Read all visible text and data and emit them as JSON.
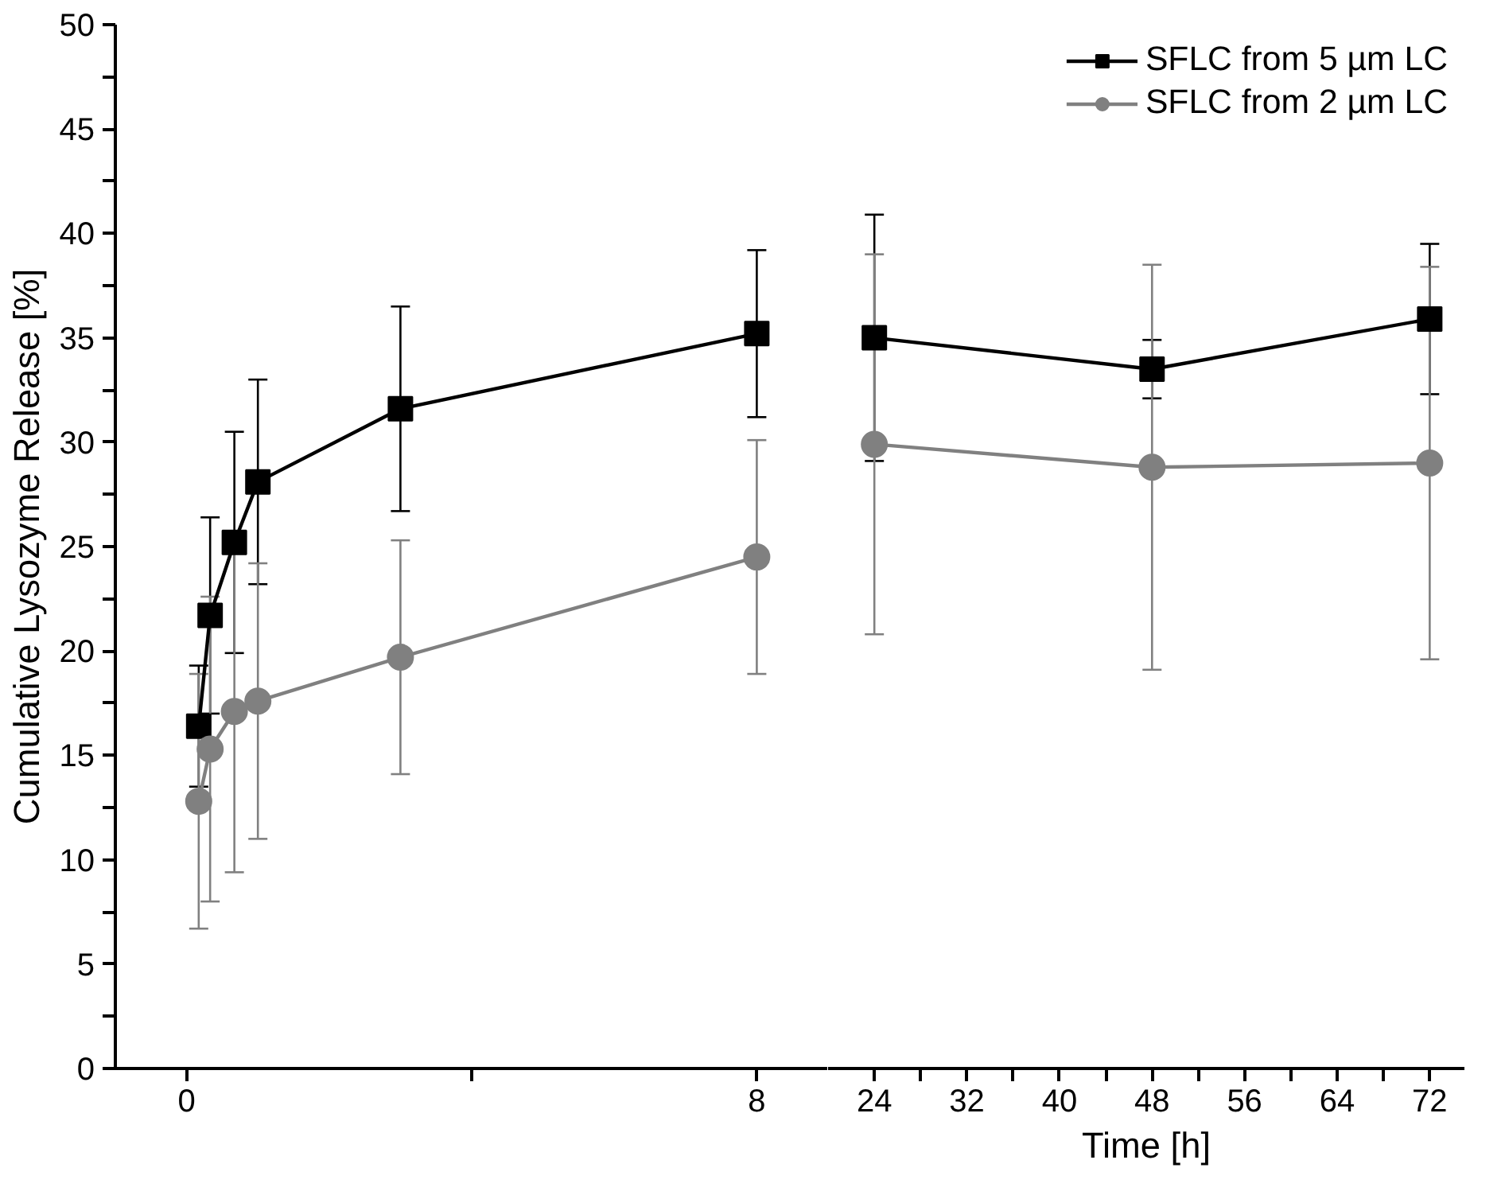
{
  "chart_data": [
    {
      "type": "line",
      "ylabel": "Cumulative Lysozyme Release [%]",
      "xlim": [
        -1,
        9
      ],
      "xticks": [
        0,
        {
          "value": 4,
          "label": null
        },
        8
      ],
      "ylim": [
        0,
        50
      ],
      "yticks": [
        0,
        {
          "value": 2.5,
          "label": null
        },
        5,
        {
          "value": 7.5,
          "label": null
        },
        10,
        {
          "value": 12.5,
          "label": null
        },
        15,
        {
          "value": 17.5,
          "label": null
        },
        20,
        {
          "value": 22.5,
          "label": null
        },
        25,
        {
          "value": 27.5,
          "label": null
        },
        30,
        {
          "value": 32.5,
          "label": null
        },
        35,
        {
          "value": 37.5,
          "label": null
        },
        40,
        {
          "value": 42.5,
          "label": null
        },
        45,
        {
          "value": 47.5,
          "label": null
        },
        50
      ],
      "grid": false,
      "legend": false,
      "line_style": "solid",
      "series": [
        {
          "color": "#000000",
          "marker": "square",
          "x": [
            0.17,
            0.33,
            0.67,
            1,
            3,
            8
          ],
          "values": [
            16.4,
            21.7,
            25.2,
            28.1,
            31.6,
            35.2
          ],
          "errors": [
            2.9,
            4.7,
            5.3,
            4.9,
            4.9,
            4.0
          ]
        },
        {
          "color": "#808080",
          "marker": "circle",
          "x": [
            0.17,
            0.33,
            0.67,
            1,
            3,
            8
          ],
          "values": [
            12.8,
            15.3,
            17.1,
            17.6,
            19.7,
            24.5
          ],
          "errors": [
            6.1,
            7.3,
            7.7,
            6.6,
            5.6,
            5.6
          ]
        }
      ]
    },
    {
      "type": "line",
      "xlabel": "Time [h]",
      "xlim": [
        20,
        75
      ],
      "xticks": [
        24,
        {
          "value": 28,
          "label": null
        },
        32,
        {
          "value": 36,
          "label": null
        },
        40,
        {
          "value": 44,
          "label": null
        },
        48,
        {
          "value": 52,
          "label": null
        },
        56,
        {
          "value": 60,
          "label": null
        },
        64,
        {
          "value": 68,
          "label": null
        },
        72
      ],
      "ylim": [
        0,
        50
      ],
      "tick_labels": "x",
      "grid": false,
      "legend": "top right",
      "line_style": "solid",
      "series": [
        {
          "name": "SFLC from 5 µm LC",
          "color": "#000000",
          "marker": "square",
          "x": [
            24,
            48,
            72
          ],
          "values": [
            35.0,
            33.5,
            35.9
          ],
          "errors": [
            5.9,
            1.4,
            3.6
          ]
        },
        {
          "name": "SFLC from 2 µm LC",
          "color": "#808080",
          "marker": "circle",
          "x": [
            24,
            48,
            72
          ],
          "values": [
            29.9,
            28.8,
            29.0
          ],
          "errors": [
            9.1,
            9.7,
            9.4
          ]
        }
      ]
    }
  ]
}
